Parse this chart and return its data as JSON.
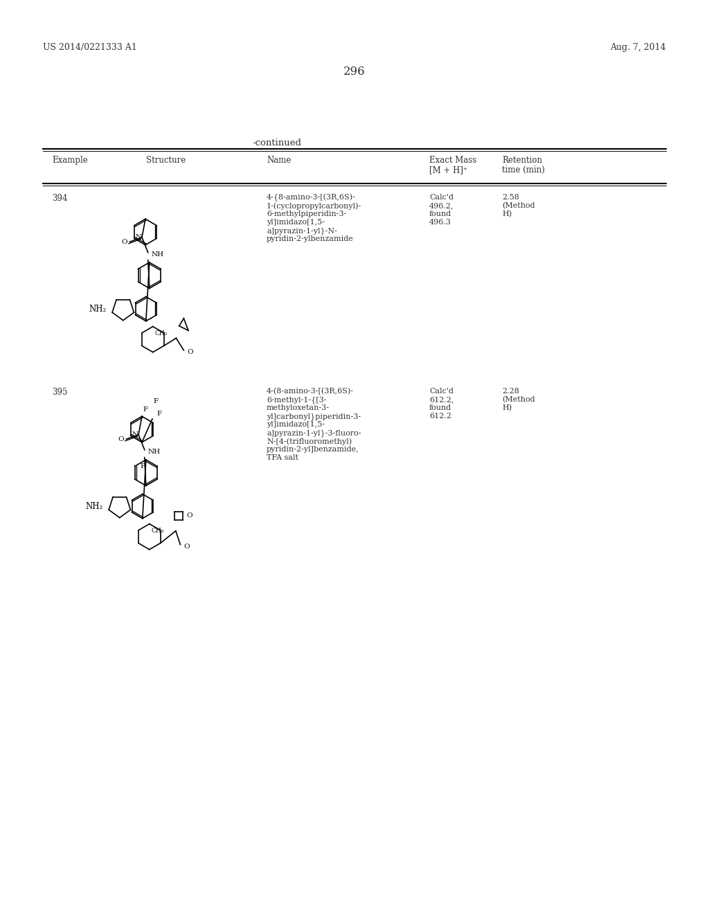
{
  "bg_color": "#ffffff",
  "header_left": "US 2014/0221333 A1",
  "header_right": "Aug. 7, 2014",
  "page_number": "296",
  "continued_text": "-continued",
  "col_headers": {
    "example": "Example",
    "structure": "Structure",
    "name": "Name",
    "exact_mass_line1": "Exact Mass",
    "exact_mass_line2": "[M + H]⁺",
    "retention_line1": "Retention",
    "retention_line2": "time (min)"
  },
  "rows": [
    {
      "example": "394",
      "name_lines": [
        "4-{8-amino-3-[(3R,6S)-",
        "1-(cyclopropylcarbonyl)-",
        "6-methylpiperidin-3-",
        "yl]imidazo[1,5-",
        "a]pyrazin-1-yl}-N-",
        "pyridin-2-ylbenzamide"
      ],
      "exact_mass_lines": [
        "Calc'd",
        "496.2,",
        "found",
        "496.3"
      ],
      "retention_lines": [
        "2.58",
        "(Method",
        "H)"
      ]
    },
    {
      "example": "395",
      "name_lines": [
        "4-(8-amino-3-[(3R,6S)-",
        "6-methyl-1-{[3-",
        "methyloxetan-3-",
        "yl]carbonyl}piperidin-3-",
        "yl]imidazo[1,5-",
        "a]pyrazin-1-yl}-3-fluoro-",
        "N-[4-(trifluoromethyl)",
        "pyridin-2-yl]benzamide,",
        "TFA salt"
      ],
      "exact_mass_lines": [
        "Calc'd",
        "612.2,",
        "found",
        "612.2"
      ],
      "retention_lines": [
        "2.28",
        "(Method",
        "H)"
      ]
    }
  ]
}
